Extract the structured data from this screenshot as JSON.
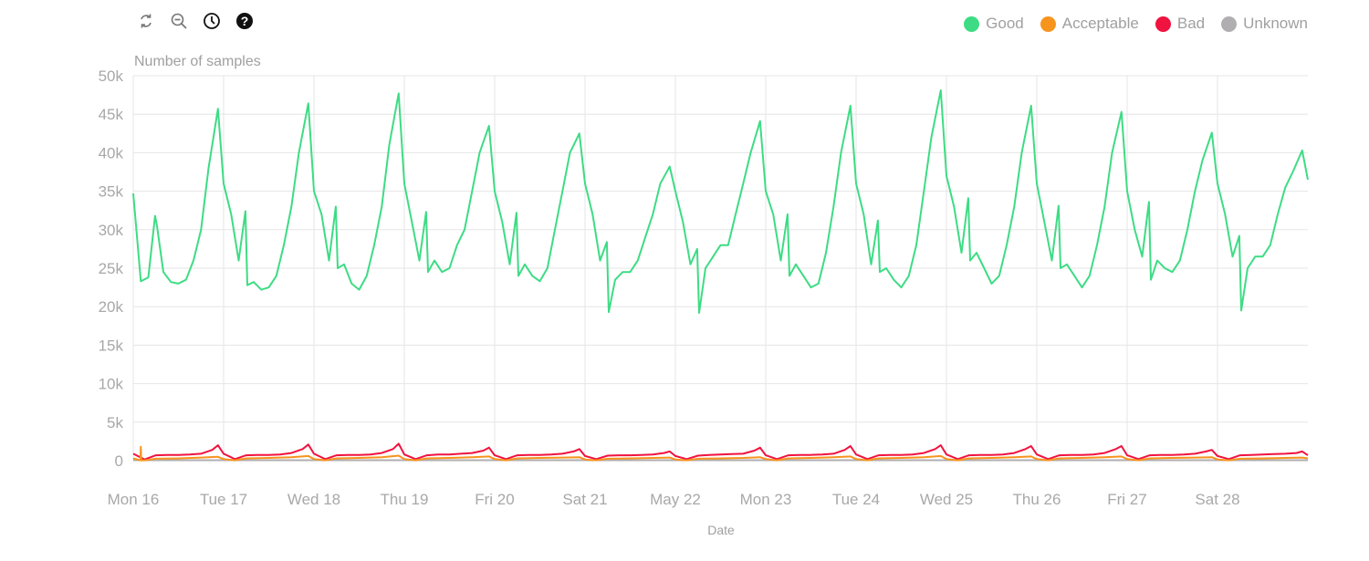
{
  "toolbar": {
    "icons": [
      "refresh-icon",
      "zoom-out-icon",
      "clock-icon",
      "help-icon"
    ]
  },
  "legend": [
    {
      "label": "Good",
      "color": "#3ddc84"
    },
    {
      "label": "Acceptable",
      "color": "#f7941d"
    },
    {
      "label": "Bad",
      "color": "#f0123f"
    },
    {
      "label": "Unknown",
      "color": "#b0aeb0"
    }
  ],
  "chart_data": {
    "type": "line",
    "ylabel": "Number of samples",
    "xlabel": "Date",
    "ylim": [
      0,
      50000
    ],
    "yticks": [
      "0",
      "5k",
      "10k",
      "15k",
      "20k",
      "25k",
      "30k",
      "35k",
      "40k",
      "45k",
      "50k"
    ],
    "xticks": [
      "Mon 16",
      "Tue 17",
      "Wed 18",
      "Thu 19",
      "Fri 20",
      "Sat 21",
      "May 22",
      "Mon 23",
      "Tue 24",
      "Wed 25",
      "Thu 26",
      "Fri 27",
      "Sat 28"
    ],
    "xrange": [
      "May 16 00:00",
      "May 29 00:00"
    ],
    "grid": true,
    "legend_position": "top-right",
    "series": [
      {
        "name": "Good",
        "color": "#3ddc84",
        "hours": [
          0,
          2,
          4,
          5.8,
          6.3,
          8,
          10,
          12,
          14,
          16,
          18,
          20,
          22.5
        ],
        "days": [
          16,
          17,
          18,
          19,
          20,
          21,
          22,
          23,
          24,
          25,
          26,
          27,
          28
        ],
        "values": [
          [
            34700,
            23300,
            23800,
            31800,
            30500,
            24500,
            23200,
            23000,
            23500,
            26000,
            30000,
            38000,
            45700
          ],
          [
            36000,
            32000,
            26000,
            32400,
            22800,
            23200,
            22200,
            22500,
            24000,
            28000,
            33000,
            40000,
            46400
          ],
          [
            35000,
            32000,
            26000,
            33000,
            25000,
            25500,
            23000,
            22200,
            24000,
            28000,
            33000,
            41000,
            47700
          ],
          [
            36000,
            31000,
            26000,
            32300,
            24500,
            26000,
            24500,
            25000,
            28000,
            30000,
            35000,
            40000,
            43500
          ],
          [
            35000,
            31000,
            25500,
            32200,
            24000,
            25500,
            24000,
            23300,
            25000,
            30000,
            35000,
            40000,
            42500
          ],
          [
            36000,
            32000,
            26000,
            28400,
            19300,
            23500,
            24500,
            24500,
            26000,
            29000,
            32000,
            36000,
            38200
          ],
          [
            35000,
            31000,
            25500,
            27500,
            19200,
            25000,
            26500,
            28000,
            28000,
            32000,
            36000,
            40000,
            44100
          ],
          [
            35000,
            32000,
            26000,
            32000,
            24000,
            25500,
            24000,
            22500,
            23000,
            27000,
            33000,
            40000,
            46100
          ],
          [
            36000,
            32000,
            25500,
            31200,
            24500,
            25000,
            23500,
            22500,
            24000,
            28000,
            35000,
            42000,
            48100
          ],
          [
            37000,
            33000,
            27000,
            34100,
            26000,
            27000,
            25000,
            23000,
            24000,
            28000,
            33000,
            40000,
            46100
          ],
          [
            36000,
            31000,
            26000,
            33100,
            25000,
            25500,
            24000,
            22500,
            24000,
            28000,
            33000,
            40000,
            45300
          ],
          [
            35000,
            30000,
            26500,
            33600,
            23500,
            26000,
            25000,
            24500,
            26000,
            30000,
            35000,
            39000,
            42600
          ],
          [
            36000,
            32000,
            26500,
            29200,
            19500,
            25000,
            26500,
            26500,
            28000,
            32000,
            35500,
            37500,
            40300
          ]
        ],
        "end": 36500
      },
      {
        "name": "Acceptable",
        "color": "#f7941d",
        "hours": [
          0,
          3,
          6,
          12,
          18,
          22.5
        ],
        "days": [
          16,
          17,
          18,
          19,
          20,
          21,
          22,
          23,
          24,
          25,
          26,
          27,
          28
        ],
        "values": [
          [
            300,
            50,
            250,
            300,
            400,
            500
          ],
          [
            200,
            50,
            300,
            350,
            450,
            600
          ],
          [
            200,
            50,
            300,
            350,
            450,
            650
          ],
          [
            200,
            50,
            300,
            350,
            450,
            550
          ],
          [
            200,
            50,
            300,
            350,
            400,
            450
          ],
          [
            150,
            50,
            250,
            300,
            350,
            400
          ],
          [
            150,
            50,
            250,
            300,
            350,
            450
          ],
          [
            200,
            50,
            300,
            350,
            450,
            550
          ],
          [
            200,
            50,
            300,
            350,
            450,
            600
          ],
          [
            200,
            50,
            300,
            350,
            450,
            550
          ],
          [
            200,
            50,
            300,
            350,
            450,
            550
          ],
          [
            200,
            50,
            300,
            350,
            400,
            450
          ],
          [
            150,
            50,
            250,
            300,
            350,
            400
          ]
        ],
        "end": 300,
        "spike": {
          "at": "May 16 02:00",
          "value": 1800
        }
      },
      {
        "name": "Bad",
        "color": "#f0123f",
        "hours": [
          0,
          3,
          6,
          9,
          12,
          15,
          18,
          21,
          22.5
        ],
        "days": [
          16,
          17,
          18,
          19,
          20,
          21,
          22,
          23,
          24,
          25,
          26,
          27,
          28
        ],
        "values": [
          [
            900,
            150,
            700,
            750,
            750,
            800,
            900,
            1400,
            2000
          ],
          [
            900,
            200,
            700,
            750,
            750,
            800,
            1000,
            1500,
            2100
          ],
          [
            900,
            200,
            700,
            750,
            750,
            800,
            1000,
            1500,
            2200
          ],
          [
            800,
            200,
            700,
            800,
            800,
            900,
            1000,
            1300,
            1700
          ],
          [
            700,
            200,
            700,
            750,
            750,
            800,
            900,
            1200,
            1500
          ],
          [
            600,
            200,
            650,
            700,
            700,
            750,
            800,
            1000,
            1200
          ],
          [
            600,
            200,
            650,
            750,
            800,
            850,
            900,
            1300,
            1700
          ],
          [
            700,
            200,
            700,
            750,
            750,
            800,
            900,
            1400,
            1900
          ],
          [
            800,
            200,
            700,
            750,
            750,
            800,
            1000,
            1500,
            2000
          ],
          [
            800,
            200,
            700,
            750,
            750,
            800,
            1000,
            1500,
            1900
          ],
          [
            800,
            200,
            700,
            750,
            750,
            800,
            1000,
            1500,
            1900
          ],
          [
            700,
            200,
            700,
            750,
            750,
            800,
            900,
            1200,
            1400
          ],
          [
            600,
            200,
            700,
            750,
            800,
            850,
            900,
            1000,
            1200
          ]
        ],
        "end": 700
      },
      {
        "name": "Unknown",
        "color": "#b0aeb0",
        "hours": [
          0
        ],
        "days": [
          16
        ],
        "values": [
          [
            60
          ]
        ],
        "end": 60
      }
    ]
  }
}
